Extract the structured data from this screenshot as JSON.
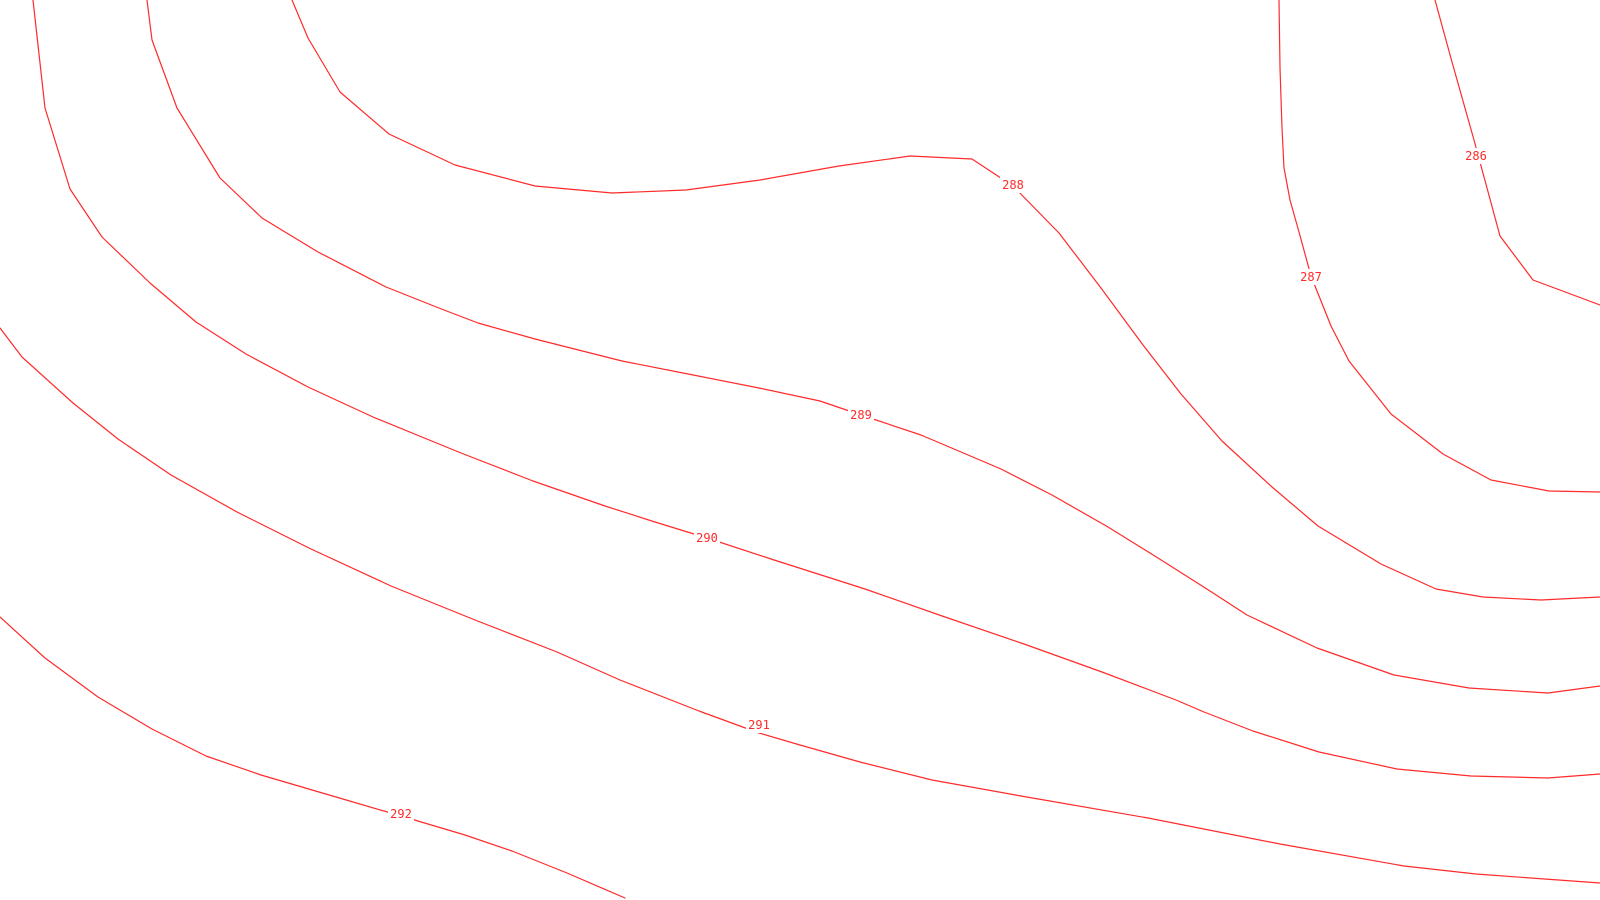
{
  "colors": {
    "background": "#ffffff",
    "contour": "#ff2a2a"
  },
  "map": {
    "contours": [
      {
        "id": "contour-286",
        "label": "286"
      },
      {
        "id": "contour-287",
        "label": "287"
      },
      {
        "id": "contour-288",
        "label": "288"
      },
      {
        "id": "contour-289",
        "label": "289"
      },
      {
        "id": "contour-290",
        "label": "290"
      },
      {
        "id": "contour-291",
        "label": "291"
      },
      {
        "id": "contour-292",
        "label": "292"
      }
    ]
  }
}
